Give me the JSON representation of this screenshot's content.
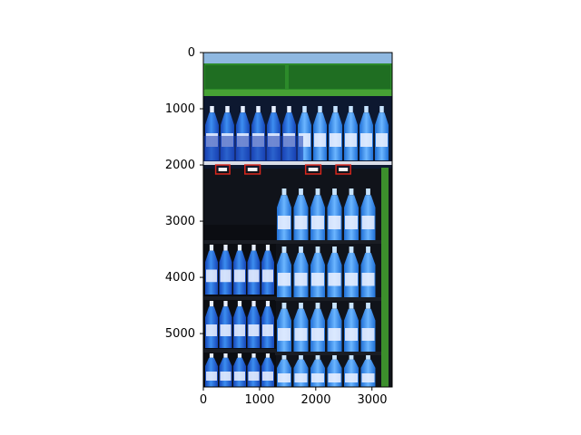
{
  "figure": {
    "x_ticks": [
      "0",
      "1000",
      "2000",
      "3000"
    ],
    "y_ticks": [
      "0",
      "1000",
      "2000",
      "3000",
      "4000",
      "5000"
    ]
  },
  "axes": {
    "xlim": [
      0,
      3360
    ],
    "ylim": [
      5950,
      0
    ],
    "x_tick_values": [
      0,
      1000,
      2000,
      3000
    ],
    "y_tick_values": [
      0,
      1000,
      2000,
      3000,
      4000,
      5000
    ]
  },
  "image_content": {
    "description_tag": "retail shelf of blue beverage bottles",
    "colors": {
      "shelf_green": "#46a234",
      "bottle_blue": "#2f7fe0",
      "bottle_dark_blue": "#1546b8",
      "label_white": "#eef2ff",
      "background_dark": "#10131a",
      "top_bin": "#8fb8e0",
      "annotation_box": "#d9261c"
    }
  },
  "annotations": [
    {
      "label": "box-1",
      "x0": 220,
      "y0": 2000,
      "x1": 470,
      "y1": 2160
    },
    {
      "label": "box-2",
      "x0": 740,
      "y0": 2000,
      "x1": 1010,
      "y1": 2160
    },
    {
      "label": "box-3",
      "x0": 1820,
      "y0": 2000,
      "x1": 2090,
      "y1": 2160
    },
    {
      "label": "box-4",
      "x0": 2360,
      "y0": 2000,
      "x1": 2620,
      "y1": 2160
    }
  ]
}
